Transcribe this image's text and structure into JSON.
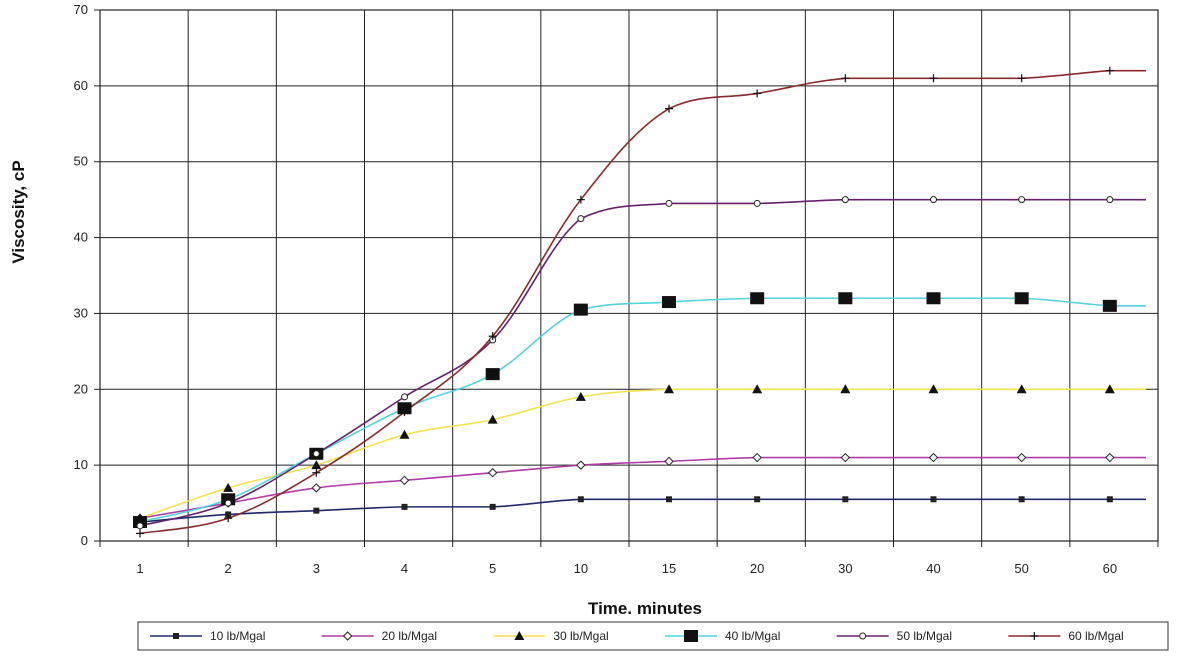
{
  "chart_data": {
    "type": "line",
    "xlabel": "Time. minutes",
    "ylabel": "Viscosity, cP",
    "ylim": [
      0,
      70
    ],
    "y_ticks": [
      "0",
      "10",
      "20",
      "30",
      "40",
      "50",
      "60",
      "70"
    ],
    "x_tick_labels": [
      "1",
      "2",
      "3",
      "4",
      "5",
      "10",
      "15",
      "20",
      "30",
      "40",
      "50",
      "60"
    ],
    "grid": true,
    "legend_placement": "bottom",
    "series": [
      {
        "name": "10 lb/Mgal",
        "color": "#1f2a6b",
        "marker": "square",
        "points": [
          [
            1,
            2.5
          ],
          [
            2,
            3.5
          ],
          [
            3,
            4
          ],
          [
            4,
            4.5
          ],
          [
            5,
            4.5
          ],
          [
            10,
            5.5
          ],
          [
            15,
            5.5
          ],
          [
            20,
            5.5
          ],
          [
            30,
            5.5
          ],
          [
            40,
            5.5
          ],
          [
            50,
            5.5
          ],
          [
            60,
            5.5
          ]
        ]
      },
      {
        "name": "20 lb/Mgal",
        "color": "#b03aa8",
        "marker": "diamond",
        "points": [
          [
            1,
            3
          ],
          [
            2,
            5
          ],
          [
            3,
            7
          ],
          [
            4,
            8
          ],
          [
            5,
            9
          ],
          [
            10,
            10
          ],
          [
            15,
            10.5
          ],
          [
            20,
            11
          ],
          [
            30,
            11
          ],
          [
            40,
            11
          ],
          [
            50,
            11
          ],
          [
            60,
            11
          ]
        ]
      },
      {
        "name": "30 lb/Mgal",
        "color": "#f2e24a",
        "marker": "triangle",
        "points": [
          [
            1,
            3
          ],
          [
            2,
            7
          ],
          [
            3,
            10
          ],
          [
            4,
            14
          ],
          [
            5,
            16
          ],
          [
            10,
            19
          ],
          [
            15,
            20
          ],
          [
            20,
            20
          ],
          [
            30,
            20
          ],
          [
            40,
            20
          ],
          [
            50,
            20
          ],
          [
            60,
            20
          ]
        ]
      },
      {
        "name": "40 lb/Mgal",
        "color": "#4fd3df",
        "marker": "big-square",
        "points": [
          [
            1,
            2.5
          ],
          [
            2,
            5.5
          ],
          [
            3,
            11.5
          ],
          [
            4,
            17.5
          ],
          [
            5,
            22
          ],
          [
            10,
            30.5
          ],
          [
            15,
            31.5
          ],
          [
            20,
            32
          ],
          [
            30,
            32
          ],
          [
            40,
            32
          ],
          [
            50,
            32
          ],
          [
            60,
            31
          ]
        ]
      },
      {
        "name": "50 lb/Mgal",
        "color": "#6a1f6e",
        "marker": "circle",
        "points": [
          [
            1,
            2
          ],
          [
            2,
            5
          ],
          [
            3,
            11.5
          ],
          [
            4,
            19
          ],
          [
            5,
            26.5
          ],
          [
            10,
            42.5
          ],
          [
            15,
            44.5
          ],
          [
            20,
            44.5
          ],
          [
            30,
            45
          ],
          [
            40,
            45
          ],
          [
            50,
            45
          ],
          [
            60,
            45
          ]
        ]
      },
      {
        "name": "60 lb/Mgal",
        "color": "#8b2a2a",
        "marker": "plus",
        "points": [
          [
            1,
            1
          ],
          [
            2,
            3
          ],
          [
            3,
            9
          ],
          [
            4,
            17
          ],
          [
            5,
            27
          ],
          [
            10,
            45
          ],
          [
            15,
            57
          ],
          [
            20,
            59
          ],
          [
            30,
            61
          ],
          [
            40,
            61
          ],
          [
            50,
            61
          ],
          [
            60,
            62
          ]
        ]
      }
    ]
  }
}
